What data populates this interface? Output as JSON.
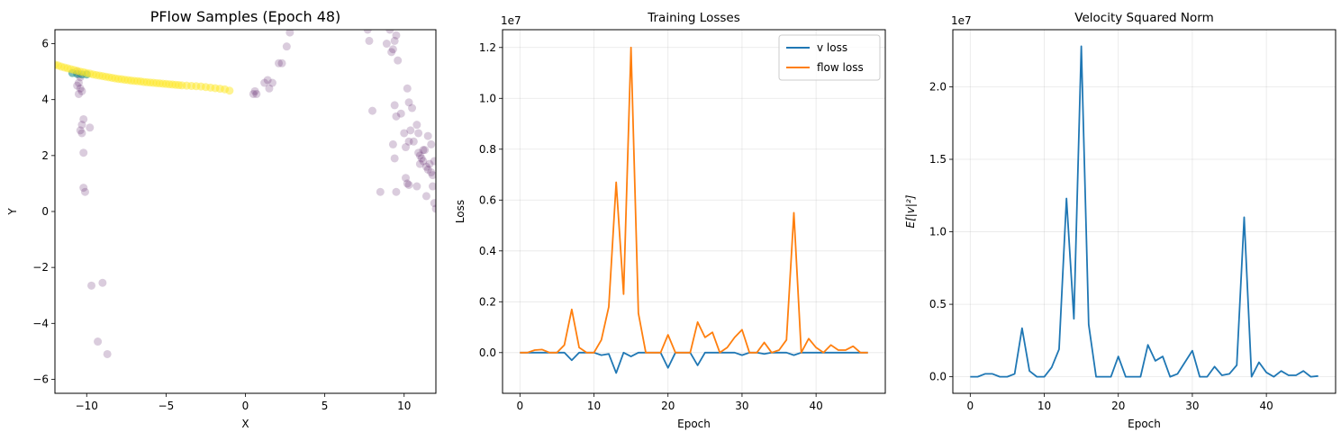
{
  "chart_data": [
    {
      "type": "scatter",
      "title": "PFlow Samples (Epoch 48)",
      "xlabel": "X",
      "ylabel": "Y",
      "xlim": [
        -12,
        12
      ],
      "ylim": [
        -6.5,
        6.5
      ],
      "xticks": [
        -10,
        -5,
        0,
        5,
        10
      ],
      "yticks": [
        -6,
        -4,
        -2,
        0,
        2,
        4,
        6
      ],
      "grid": false,
      "series": [
        {
          "color": "#440154",
          "opacity": 0.2,
          "points": [
            [
              -10.6,
              5.0
            ],
            [
              -10.4,
              4.8
            ],
            [
              -10.5,
              4.6
            ],
            [
              -10.4,
              4.4
            ],
            [
              -10.5,
              4.2
            ],
            [
              -10.6,
              4.5
            ],
            [
              -10.3,
              4.3
            ],
            [
              -10.5,
              4.9
            ],
            [
              -10.2,
              3.3
            ],
            [
              -10.3,
              3.1
            ],
            [
              -10.4,
              2.9
            ],
            [
              -10.3,
              2.8
            ],
            [
              -9.8,
              3.0
            ],
            [
              -10.2,
              2.1
            ],
            [
              -10.2,
              0.85
            ],
            [
              -10.1,
              0.7
            ],
            [
              -9.7,
              -2.65
            ],
            [
              -9.0,
              -2.55
            ],
            [
              -9.3,
              -4.65
            ],
            [
              -8.7,
              -5.1
            ],
            [
              0.5,
              4.2
            ],
            [
              0.6,
              4.3
            ],
            [
              0.7,
              4.2
            ],
            [
              1.2,
              4.6
            ],
            [
              1.4,
              4.7
            ],
            [
              1.5,
              4.4
            ],
            [
              1.7,
              4.6
            ],
            [
              2.1,
              5.3
            ],
            [
              2.3,
              5.3
            ],
            [
              2.6,
              5.9
            ],
            [
              2.8,
              6.4
            ],
            [
              7.7,
              6.5
            ],
            [
              7.8,
              6.1
            ],
            [
              8.0,
              3.6
            ],
            [
              8.5,
              0.7
            ],
            [
              8.9,
              6.0
            ],
            [
              9.1,
              6.5
            ],
            [
              9.2,
              5.7
            ],
            [
              9.3,
              5.8
            ],
            [
              9.4,
              6.1
            ],
            [
              9.5,
              6.3
            ],
            [
              9.6,
              5.4
            ],
            [
              9.4,
              3.8
            ],
            [
              9.5,
              3.4
            ],
            [
              9.3,
              2.4
            ],
            [
              9.4,
              1.9
            ],
            [
              9.5,
              0.7
            ],
            [
              9.8,
              3.5
            ],
            [
              10.0,
              2.8
            ],
            [
              10.1,
              2.3
            ],
            [
              10.3,
              2.5
            ],
            [
              10.2,
              4.4
            ],
            [
              10.3,
              3.9
            ],
            [
              10.5,
              3.7
            ],
            [
              10.4,
              2.9
            ],
            [
              10.6,
              2.5
            ],
            [
              10.8,
              3.1
            ],
            [
              10.9,
              2.1
            ],
            [
              11.0,
              2.0
            ],
            [
              11.1,
              1.9
            ],
            [
              11.3,
              2.2
            ],
            [
              11.2,
              1.8
            ],
            [
              11.4,
              1.6
            ],
            [
              11.5,
              1.5
            ],
            [
              11.6,
              1.7
            ],
            [
              11.7,
              1.4
            ],
            [
              11.8,
              1.3
            ],
            [
              11.9,
              1.8
            ],
            [
              10.1,
              1.2
            ],
            [
              10.2,
              1.0
            ],
            [
              10.3,
              0.95
            ],
            [
              10.8,
              0.9
            ],
            [
              11.5,
              2.7
            ],
            [
              11.7,
              2.4
            ],
            [
              11.8,
              0.9
            ],
            [
              11.4,
              0.55
            ],
            [
              11.9,
              0.3
            ],
            [
              12.0,
              0.1
            ],
            [
              10.9,
              2.8
            ],
            [
              11.2,
              2.2
            ],
            [
              11.0,
              1.7
            ]
          ]
        },
        {
          "color": "#21918c",
          "opacity": 0.6,
          "points": [
            [
              -10.9,
              4.95
            ],
            [
              -10.6,
              4.92
            ],
            [
              -10.3,
              4.9
            ],
            [
              -10.0,
              4.9
            ]
          ]
        },
        {
          "color": "#fde725",
          "opacity": 0.5,
          "points": [
            [
              -12.0,
              5.25
            ],
            [
              -11.8,
              5.22
            ],
            [
              -11.6,
              5.18
            ],
            [
              -11.4,
              5.15
            ],
            [
              -11.2,
              5.12
            ],
            [
              -11.0,
              5.09
            ],
            [
              -10.8,
              5.06
            ],
            [
              -10.6,
              5.03
            ],
            [
              -10.4,
              5.0
            ],
            [
              -10.2,
              4.98
            ],
            [
              -10.0,
              4.95
            ],
            [
              -9.8,
              4.93
            ],
            [
              -9.6,
              4.9
            ],
            [
              -9.4,
              4.88
            ],
            [
              -9.2,
              4.86
            ],
            [
              -9.0,
              4.84
            ],
            [
              -8.8,
              4.82
            ],
            [
              -8.6,
              4.8
            ],
            [
              -8.4,
              4.78
            ],
            [
              -8.2,
              4.76
            ],
            [
              -8.0,
              4.74
            ],
            [
              -7.8,
              4.73
            ],
            [
              -7.6,
              4.71
            ],
            [
              -7.4,
              4.7
            ],
            [
              -7.2,
              4.68
            ],
            [
              -7.0,
              4.67
            ],
            [
              -6.8,
              4.66
            ],
            [
              -6.6,
              4.65
            ],
            [
              -6.4,
              4.63
            ],
            [
              -6.2,
              4.62
            ],
            [
              -6.0,
              4.61
            ],
            [
              -5.8,
              4.6
            ],
            [
              -5.6,
              4.59
            ],
            [
              -5.4,
              4.58
            ],
            [
              -5.2,
              4.57
            ],
            [
              -5.0,
              4.56
            ],
            [
              -4.8,
              4.55
            ],
            [
              -4.6,
              4.54
            ],
            [
              -4.4,
              4.53
            ],
            [
              -4.2,
              4.52
            ],
            [
              -4.0,
              4.51
            ],
            [
              -3.7,
              4.5
            ],
            [
              -3.4,
              4.49
            ],
            [
              -3.1,
              4.48
            ],
            [
              -2.8,
              4.47
            ],
            [
              -2.5,
              4.45
            ],
            [
              -2.2,
              4.43
            ],
            [
              -1.9,
              4.41
            ],
            [
              -1.6,
              4.39
            ],
            [
              -1.3,
              4.37
            ],
            [
              -1.0,
              4.32
            ]
          ]
        }
      ]
    },
    {
      "type": "line",
      "title": "Training Losses",
      "xlabel": "Epoch",
      "ylabel": "Loss",
      "offset_text": "1e7",
      "xlim": [
        -2.35,
        49.35
      ],
      "ylim": [
        -0.16,
        1.27
      ],
      "xticks": [
        0,
        10,
        20,
        30,
        40
      ],
      "yticks": [
        0.0,
        0.2,
        0.4,
        0.6,
        0.8,
        1.0,
        1.2
      ],
      "ytick_labels": [
        "0.0",
        "0.2",
        "0.4",
        "0.6",
        "0.8",
        "1.0",
        "1.2"
      ],
      "grid": true,
      "legend": "top-right",
      "x": [
        0,
        1,
        2,
        3,
        4,
        5,
        6,
        7,
        8,
        9,
        10,
        11,
        12,
        13,
        14,
        15,
        16,
        17,
        18,
        19,
        20,
        21,
        22,
        23,
        24,
        25,
        26,
        27,
        28,
        29,
        30,
        31,
        32,
        33,
        34,
        35,
        36,
        37,
        38,
        39,
        40,
        41,
        42,
        43,
        44,
        45,
        46,
        47
      ],
      "series": [
        {
          "name": "v loss",
          "color": "#1f77b4",
          "values": [
            0,
            0,
            0,
            0,
            0,
            0,
            0,
            -0.03,
            0,
            0,
            0,
            -0.01,
            -0.005,
            -0.08,
            0,
            -0.015,
            0,
            0,
            0,
            0,
            -0.06,
            0,
            0,
            0,
            -0.05,
            0,
            0,
            0,
            0,
            0,
            -0.01,
            0,
            0,
            -0.005,
            0,
            0,
            0,
            -0.01,
            0,
            0,
            0,
            0,
            0,
            0,
            0,
            0,
            0,
            0
          ]
        },
        {
          "name": "flow loss",
          "color": "#ff7f0e",
          "values": [
            0,
            0,
            0.01,
            0.012,
            0,
            0,
            0.03,
            0.17,
            0.02,
            0,
            0,
            0.05,
            0.18,
            0.67,
            0.23,
            1.2,
            0.155,
            0,
            0,
            0,
            0.07,
            0,
            0,
            0,
            0.12,
            0.06,
            0.08,
            0,
            0.02,
            0.06,
            0.09,
            0,
            0,
            0.04,
            0,
            0.01,
            0.05,
            0.55,
            0,
            0.055,
            0.02,
            0,
            0.03,
            0.01,
            0.01,
            0.025,
            0,
            0
          ]
        }
      ]
    },
    {
      "type": "line",
      "title": "Velocity Squared Norm",
      "xlabel": "Epoch",
      "ylabel": "E[|v|²]",
      "offset_text": "1e7",
      "xlim": [
        -2.35,
        49.35
      ],
      "ylim": [
        -0.114,
        2.394
      ],
      "xticks": [
        0,
        10,
        20,
        30,
        40
      ],
      "yticks": [
        0.0,
        0.5,
        1.0,
        1.5,
        2.0
      ],
      "ytick_labels": [
        "0.0",
        "0.5",
        "1.0",
        "1.5",
        "2.0"
      ],
      "grid": true,
      "x": [
        0,
        1,
        2,
        3,
        4,
        5,
        6,
        7,
        8,
        9,
        10,
        11,
        12,
        13,
        14,
        15,
        16,
        17,
        18,
        19,
        20,
        21,
        22,
        23,
        24,
        25,
        26,
        27,
        28,
        29,
        30,
        31,
        32,
        33,
        34,
        35,
        36,
        37,
        38,
        39,
        40,
        41,
        42,
        43,
        44,
        45,
        46,
        47
      ],
      "series": [
        {
          "color": "#1f77b4",
          "values": [
            0,
            0,
            0.02,
            0.02,
            0,
            0,
            0.02,
            0.335,
            0.04,
            0,
            0,
            0.065,
            0.19,
            1.23,
            0.4,
            2.28,
            0.36,
            0,
            0,
            0,
            0.14,
            0,
            0,
            0,
            0.22,
            0.11,
            0.14,
            0,
            0.02,
            0.1,
            0.18,
            0,
            0,
            0.07,
            0.01,
            0.02,
            0.08,
            1.1,
            0,
            0.1,
            0.03,
            0,
            0.04,
            0.01,
            0.01,
            0.04,
            0,
            0.005
          ]
        }
      ]
    }
  ]
}
